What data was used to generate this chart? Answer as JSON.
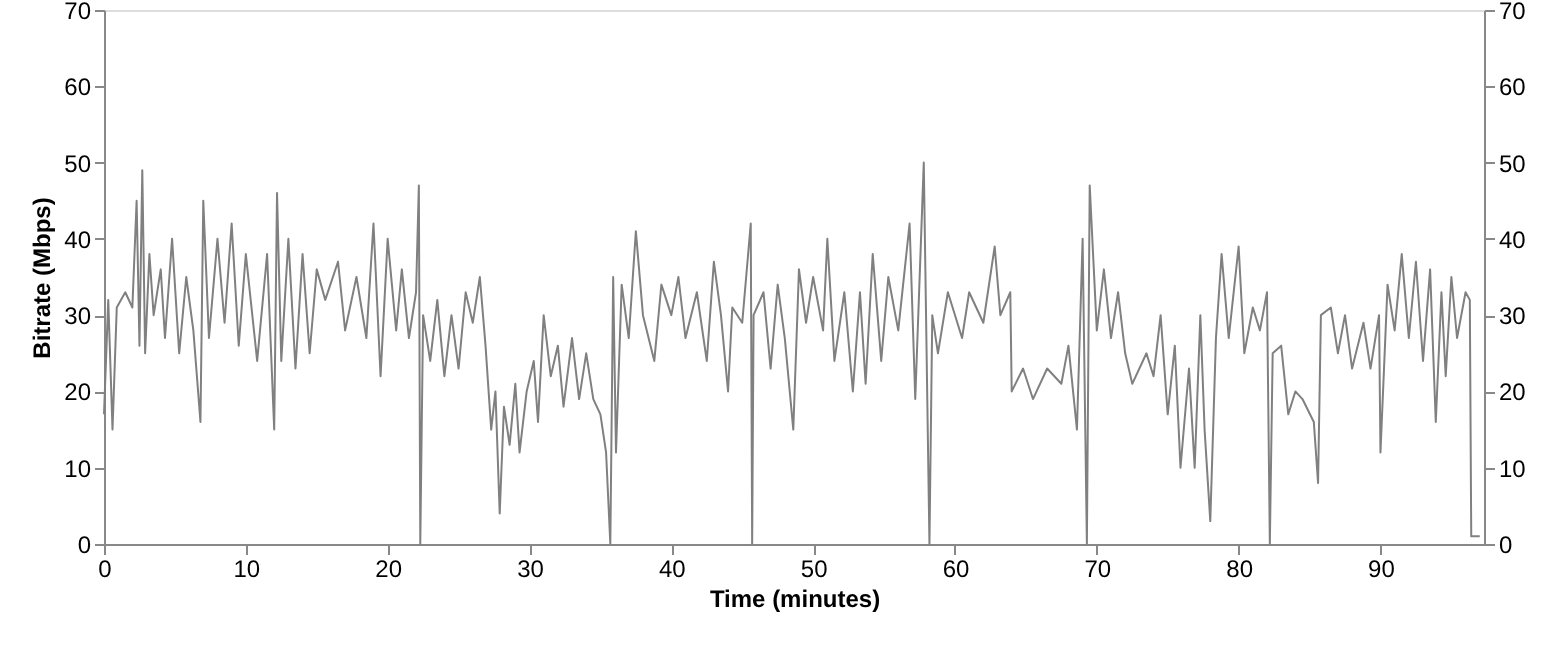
{
  "chart_data": {
    "type": "line",
    "xlabel": "Time (minutes)",
    "ylabel": "Bitrate (Mbps)",
    "xlim": [
      0,
      97.3
    ],
    "xticks": [
      0,
      10,
      20,
      30,
      40,
      50,
      60,
      70,
      80,
      90
    ],
    "ylim": [
      0,
      70
    ],
    "yticks": [
      0,
      10,
      20,
      30,
      40,
      50,
      60,
      70
    ],
    "y2lim": [
      0,
      70
    ],
    "y2ticks": [
      0,
      10,
      20,
      30,
      40,
      50,
      60,
      70
    ],
    "grid": false,
    "marker": "none",
    "line_style": "solid",
    "series": [
      {
        "color": "#808080",
        "x": [
          0,
          0.3,
          0.6,
          0.9,
          1.5,
          2.0,
          2.3,
          2.5,
          2.7,
          2.9,
          3.2,
          3.5,
          4.0,
          4.3,
          4.8,
          5.3,
          5.8,
          6.3,
          6.8,
          7.0,
          7.4,
          8.0,
          8.5,
          9.0,
          9.5,
          10.0,
          10.8,
          11.5,
          12.0,
          12.2,
          12.5,
          13.0,
          13.5,
          14.0,
          14.5,
          15.0,
          15.6,
          16.5,
          17.0,
          17.8,
          18.5,
          19.0,
          19.5,
          20.0,
          20.6,
          21.0,
          21.5,
          22.0,
          22.2,
          22.3,
          22.5,
          23.0,
          23.5,
          24.0,
          24.5,
          25.0,
          25.5,
          26.0,
          26.5,
          26.9,
          27.3,
          27.6,
          27.9,
          28.2,
          28.6,
          29.0,
          29.3,
          29.8,
          30.3,
          30.6,
          31.0,
          31.5,
          32.0,
          32.4,
          33.0,
          33.5,
          34.0,
          34.5,
          35.0,
          35.4,
          35.7,
          35.9,
          36.1,
          36.5,
          37.0,
          37.5,
          38.0,
          38.8,
          39.3,
          40.0,
          40.5,
          41.0,
          41.8,
          42.5,
          43.0,
          43.5,
          44.0,
          44.3,
          45.0,
          45.6,
          45.7,
          45.8,
          46.5,
          47.0,
          47.5,
          48.0,
          48.6,
          49.0,
          49.5,
          50.0,
          50.7,
          51.0,
          51.5,
          52.2,
          52.8,
          53.3,
          53.7,
          54.2,
          54.8,
          55.3,
          56.0,
          56.8,
          57.2,
          57.8,
          58.2,
          58.4,
          58.8,
          59.5,
          60.5,
          61.0,
          62.0,
          62.8,
          63.2,
          63.9,
          64.0,
          64.8,
          65.5,
          66.5,
          67.5,
          68.0,
          68.6,
          69.0,
          69.3,
          69.5,
          70.0,
          70.5,
          71.0,
          71.5,
          72.0,
          72.5,
          73.5,
          74.0,
          74.5,
          75.0,
          75.5,
          75.9,
          76.5,
          76.9,
          77.3,
          77.6,
          78.0,
          78.4,
          78.8,
          79.3,
          80.0,
          80.4,
          81.0,
          81.5,
          82.0,
          82.2,
          82.4,
          83.0,
          83.5,
          84.0,
          84.5,
          85.3,
          85.6,
          85.8,
          86.5,
          87.0,
          87.5,
          88.0,
          88.8,
          89.3,
          89.9,
          90.0,
          90.5,
          91.0,
          91.5,
          92.0,
          92.5,
          93.0,
          93.5,
          93.9,
          94.3,
          94.6,
          95.0,
          95.4,
          96.0,
          96.3,
          96.4,
          97.0
        ],
        "values": [
          17,
          32,
          15,
          31,
          33,
          31,
          45,
          26,
          49,
          25,
          38,
          30,
          36,
          27,
          40,
          25,
          35,
          28,
          16,
          45,
          27,
          40,
          29,
          42,
          26,
          38,
          24,
          38,
          15,
          46,
          24,
          40,
          23,
          38,
          25,
          36,
          32,
          37,
          28,
          35,
          27,
          42,
          22,
          40,
          28,
          36,
          27,
          33,
          47,
          0,
          30,
          24,
          32,
          22,
          30,
          23,
          33,
          29,
          35,
          26,
          15,
          20,
          4,
          18,
          13,
          21,
          12,
          20,
          24,
          16,
          30,
          22,
          26,
          18,
          27,
          19,
          25,
          19,
          17,
          12,
          0,
          35,
          12,
          34,
          27,
          41,
          30,
          24,
          34,
          30,
          35,
          27,
          33,
          24,
          37,
          30,
          20,
          31,
          29,
          42,
          0,
          30,
          33,
          23,
          34,
          27,
          15,
          36,
          29,
          35,
          28,
          40,
          24,
          33,
          20,
          33,
          21,
          38,
          24,
          35,
          28,
          42,
          19,
          50,
          0,
          30,
          25,
          33,
          27,
          33,
          29,
          39,
          30,
          33,
          20,
          23,
          19,
          23,
          21,
          26,
          15,
          40,
          0,
          47,
          28,
          36,
          27,
          33,
          25,
          21,
          25,
          22,
          30,
          17,
          26,
          10,
          23,
          10,
          30,
          15,
          3,
          27,
          38,
          27,
          39,
          25,
          31,
          28,
          33,
          0,
          25,
          26,
          17,
          20,
          19,
          16,
          8,
          30,
          31,
          25,
          30,
          23,
          29,
          23,
          30,
          12,
          34,
          28,
          38,
          27,
          37,
          24,
          36,
          16,
          33,
          22,
          35,
          27,
          33,
          32,
          1,
          1
        ]
      }
    ]
  }
}
